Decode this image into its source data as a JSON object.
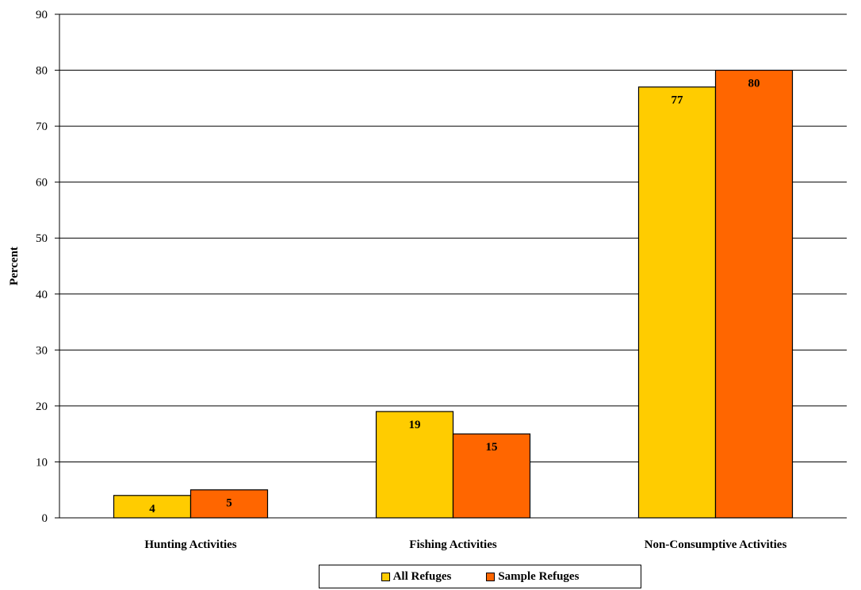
{
  "chart_data": {
    "type": "bar",
    "title": "",
    "xlabel": "",
    "ylabel": "Percent",
    "ylim": [
      0,
      90
    ],
    "yticks": [
      0,
      10,
      20,
      30,
      40,
      50,
      60,
      70,
      80,
      90
    ],
    "grid": true,
    "legend_position": "bottom",
    "categories": [
      "Hunting Activities",
      "Fishing Activities",
      "Non-Consumptive Activities"
    ],
    "series": [
      {
        "name": "All Refuges",
        "color": "#FFCC00",
        "values": [
          4,
          19,
          77
        ]
      },
      {
        "name": "Sample Refuges",
        "color": "#FF6600",
        "values": [
          5,
          15,
          80
        ]
      }
    ]
  }
}
